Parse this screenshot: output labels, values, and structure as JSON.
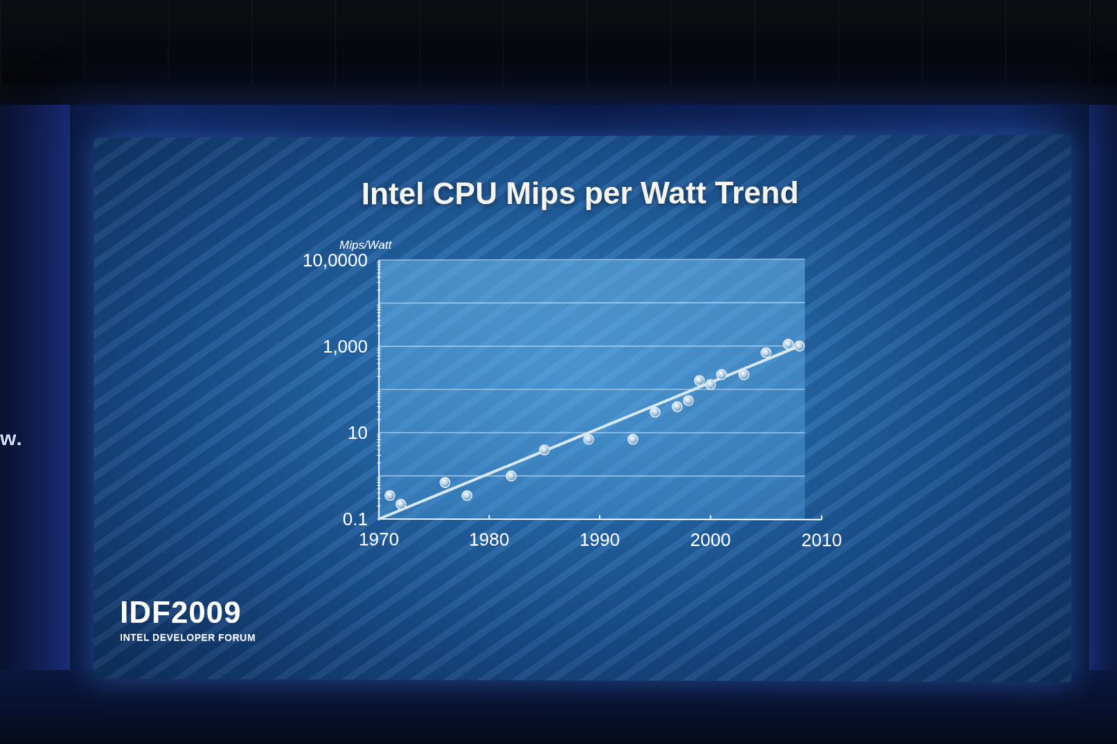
{
  "slide": {
    "title": "Intel CPU Mips per Watt Trend",
    "logo_main": "IDF2009",
    "logo_sub": "INTEL DEVELOPER FORUM"
  },
  "stage": {
    "side_text": "w."
  },
  "colors": {
    "slide_bg": "#2466a8",
    "plot_area": "#5aa6e0",
    "trend_line": "#d8eaf6",
    "marker": "#c8d8e8",
    "text": "#ffffff"
  },
  "chart_data": {
    "type": "scatter",
    "title": "Intel CPU Mips per Watt Trend",
    "ylabel": "Mips/Watt",
    "xlabel": "",
    "y_scale": "log",
    "xlim": [
      1970,
      2010
    ],
    "ylim": [
      0.1,
      100000
    ],
    "x_ticks": [
      "1970",
      "1980",
      "1990",
      "2000",
      "2010"
    ],
    "y_ticks": [
      "0.1",
      "10",
      "1,000",
      "10,0000"
    ],
    "grid": true,
    "series": [
      {
        "points": [
          {
            "x": 1971,
            "y": 0.35
          },
          {
            "x": 1972,
            "y": 0.22
          },
          {
            "x": 1976,
            "y": 0.7
          },
          {
            "x": 1978,
            "y": 0.35
          },
          {
            "x": 1982,
            "y": 1.0
          },
          {
            "x": 1985,
            "y": 4.0
          },
          {
            "x": 1989,
            "y": 7.0
          },
          {
            "x": 1993,
            "y": 7.0
          },
          {
            "x": 1995,
            "y": 30
          },
          {
            "x": 1997,
            "y": 40
          },
          {
            "x": 1998,
            "y": 55
          },
          {
            "x": 1999,
            "y": 160
          },
          {
            "x": 2000,
            "y": 130
          },
          {
            "x": 2001,
            "y": 220
          },
          {
            "x": 2003,
            "y": 220
          },
          {
            "x": 2005,
            "y": 700
          },
          {
            "x": 2007,
            "y": 1100
          },
          {
            "x": 2008,
            "y": 1000
          }
        ]
      }
    ],
    "trend_line": {
      "start": {
        "x": 1970,
        "y": 0.1
      },
      "end": {
        "x": 2008,
        "y": 1000
      }
    }
  }
}
